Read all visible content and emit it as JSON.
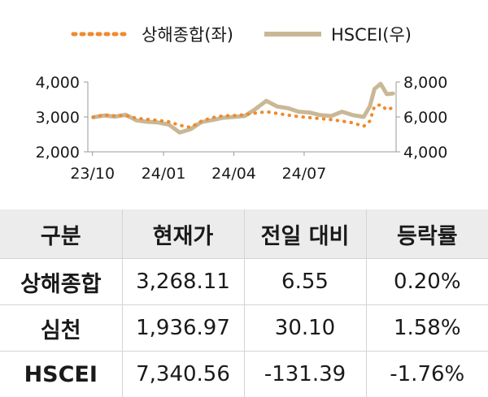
{
  "chart_data": {
    "type": "line",
    "legend_placement": "top",
    "x_tick_labels": [
      "23/10",
      "24/01",
      "24/04",
      "24/07"
    ],
    "y_left": {
      "ylim": [
        2000,
        4000
      ],
      "tick_labels": [
        "4,000",
        "3,000",
        "2,000"
      ]
    },
    "y_right": {
      "ylim": [
        4000,
        8000
      ],
      "tick_labels": [
        "8,000",
        "6,000",
        "4,000"
      ]
    },
    "series": [
      {
        "name": "상해종합(좌)",
        "axis": "left",
        "style": "dotted",
        "color": "#ef8a2e",
        "points": [
          [
            "2023-10-02",
            2990
          ],
          [
            "2023-10-16",
            3060
          ],
          [
            "2023-10-30",
            3030
          ],
          [
            "2023-11-13",
            3040
          ],
          [
            "2023-11-27",
            2960
          ],
          [
            "2023-12-11",
            2930
          ],
          [
            "2023-12-25",
            2900
          ],
          [
            "2024-01-08",
            2860
          ],
          [
            "2024-01-22",
            2760
          ],
          [
            "2024-02-05",
            2700
          ],
          [
            "2024-02-19",
            2880
          ],
          [
            "2024-03-04",
            2980
          ],
          [
            "2024-03-18",
            3030
          ],
          [
            "2024-04-01",
            3040
          ],
          [
            "2024-04-15",
            3060
          ],
          [
            "2024-04-29",
            3110
          ],
          [
            "2024-05-13",
            3150
          ],
          [
            "2024-05-27",
            3100
          ],
          [
            "2024-06-10",
            3050
          ],
          [
            "2024-06-24",
            3010
          ],
          [
            "2024-07-08",
            2980
          ],
          [
            "2024-07-22",
            2950
          ],
          [
            "2024-08-05",
            2920
          ],
          [
            "2024-08-19",
            2880
          ],
          [
            "2024-09-02",
            2830
          ],
          [
            "2024-09-16",
            2730
          ],
          [
            "2024-09-24",
            2880
          ],
          [
            "2024-09-30",
            3300
          ],
          [
            "2024-10-08",
            3350
          ],
          [
            "2024-10-16",
            3200
          ],
          [
            "2024-10-24",
            3270
          ]
        ]
      },
      {
        "name": "HSCEI(우)",
        "axis": "right",
        "style": "solid",
        "color": "#c9b896",
        "points": [
          [
            "2023-10-02",
            5980
          ],
          [
            "2023-10-16",
            6080
          ],
          [
            "2023-10-30",
            6020
          ],
          [
            "2023-11-13",
            6120
          ],
          [
            "2023-11-27",
            5800
          ],
          [
            "2023-12-11",
            5720
          ],
          [
            "2023-12-25",
            5680
          ],
          [
            "2024-01-08",
            5560
          ],
          [
            "2024-01-22",
            5100
          ],
          [
            "2024-02-05",
            5300
          ],
          [
            "2024-02-19",
            5700
          ],
          [
            "2024-03-04",
            5820
          ],
          [
            "2024-03-18",
            5950
          ],
          [
            "2024-04-01",
            6000
          ],
          [
            "2024-04-15",
            6050
          ],
          [
            "2024-04-29",
            6450
          ],
          [
            "2024-05-13",
            6920
          ],
          [
            "2024-05-27",
            6600
          ],
          [
            "2024-06-10",
            6500
          ],
          [
            "2024-06-24",
            6300
          ],
          [
            "2024-07-08",
            6250
          ],
          [
            "2024-07-22",
            6100
          ],
          [
            "2024-08-05",
            6050
          ],
          [
            "2024-08-19",
            6300
          ],
          [
            "2024-09-02",
            6100
          ],
          [
            "2024-09-16",
            6000
          ],
          [
            "2024-09-24",
            6600
          ],
          [
            "2024-09-30",
            7600
          ],
          [
            "2024-10-08",
            7900
          ],
          [
            "2024-10-16",
            7300
          ],
          [
            "2024-10-24",
            7340
          ]
        ]
      }
    ]
  },
  "table": {
    "headers": [
      "구분",
      "현재가",
      "전일 대비",
      "등락률"
    ],
    "rows": [
      {
        "name": "상해종합",
        "price": "3,268.11",
        "change": "6.55",
        "rate": "0.20%"
      },
      {
        "name": "심천",
        "price": "1,936.97",
        "change": "30.10",
        "rate": "1.58%"
      },
      {
        "name": "HSCEI",
        "price": "7,340.56",
        "change": "-131.39",
        "rate": "-1.76%"
      }
    ]
  }
}
